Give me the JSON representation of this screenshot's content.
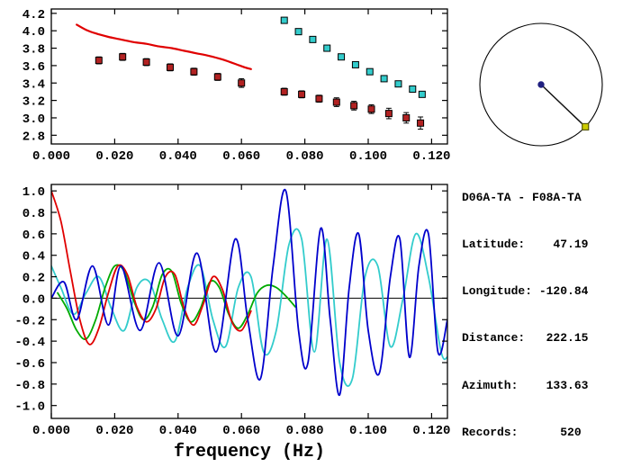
{
  "info": {
    "pair": "D06A-TA - F08A-TA",
    "lines": [
      "Latitude:    47.19",
      "Longitude: -120.84",
      "Distance:   222.15",
      "Azimuth:    133.63",
      "Records:      520"
    ]
  },
  "colors": {
    "background": "#ffffff",
    "axis": "#000000",
    "reference_red": "#e00000",
    "measured_maroon": "#b22222",
    "alternate_cyan": "#33cccc",
    "waveform_green": "#00aa00",
    "waveform_blue": "#0000cc",
    "map_center_navy": "#202080",
    "map_station_yellow": "#cccc00"
  },
  "chart_data": [
    {
      "id": "dispersion",
      "type": "scatter",
      "title": "",
      "xlabel": "",
      "ylabel": "",
      "xlim": [
        0,
        0.125
      ],
      "ylim": [
        2.7,
        4.25
      ],
      "grid": false,
      "xticks": [
        0.0,
        0.02,
        0.04,
        0.06,
        0.08,
        0.1,
        0.12
      ],
      "xtick_labels": [
        "0.000",
        "0.020",
        "0.040",
        "0.060",
        "0.080",
        "0.100",
        "0.120"
      ],
      "yticks": [
        2.8,
        3.0,
        3.2,
        3.4,
        3.6,
        3.8,
        4.0,
        4.2
      ],
      "ytick_labels": [
        "2.8",
        "3.0",
        "3.2",
        "3.4",
        "3.6",
        "3.8",
        "4.0",
        "4.2"
      ],
      "series": [
        {
          "name": "reference-dispersion-curve",
          "type": "line",
          "color": "#e00000",
          "width": 2.2,
          "x": [
            0.008,
            0.011,
            0.014,
            0.018,
            0.022,
            0.026,
            0.03,
            0.034,
            0.038,
            0.042,
            0.046,
            0.05,
            0.054,
            0.058,
            0.061,
            0.063
          ],
          "y": [
            4.07,
            4.01,
            3.97,
            3.93,
            3.9,
            3.87,
            3.85,
            3.82,
            3.8,
            3.77,
            3.74,
            3.71,
            3.67,
            3.62,
            3.58,
            3.56
          ]
        },
        {
          "name": "measured-phase-velocity",
          "type": "scatter",
          "marker": "square",
          "color": "#b22222",
          "edge": "#000000",
          "x": [
            0.015,
            0.0225,
            0.03,
            0.0375,
            0.045,
            0.0525,
            0.06,
            0.0735,
            0.079,
            0.0845,
            0.09,
            0.0955,
            0.101,
            0.1065,
            0.112,
            0.1165
          ],
          "y": [
            3.66,
            3.7,
            3.64,
            3.58,
            3.53,
            3.47,
            3.4,
            3.3,
            3.27,
            3.22,
            3.18,
            3.14,
            3.1,
            3.05,
            3.0,
            2.94
          ],
          "yerr": [
            0.04,
            0.04,
            0.04,
            0.04,
            0.04,
            0.04,
            0.05,
            0.04,
            0.04,
            0.04,
            0.05,
            0.05,
            0.05,
            0.06,
            0.06,
            0.07
          ]
        },
        {
          "name": "alternate-phase-velocity",
          "type": "scatter",
          "marker": "square",
          "color": "#33cccc",
          "edge": "#000000",
          "x": [
            0.0735,
            0.078,
            0.0825,
            0.087,
            0.0915,
            0.096,
            0.1005,
            0.105,
            0.1095,
            0.114,
            0.117
          ],
          "y": [
            4.12,
            3.99,
            3.9,
            3.8,
            3.7,
            3.61,
            3.53,
            3.45,
            3.39,
            3.33,
            3.27
          ]
        }
      ]
    },
    {
      "id": "waveforms",
      "type": "line",
      "title": "",
      "xlabel": "frequency (Hz)",
      "ylabel": "",
      "xlim": [
        0,
        0.125
      ],
      "ylim": [
        -1.12,
        1.06
      ],
      "grid": false,
      "zero_line": true,
      "xticks": [
        0.0,
        0.02,
        0.04,
        0.06,
        0.08,
        0.1,
        0.12
      ],
      "xtick_labels": [
        "0.000",
        "0.020",
        "0.040",
        "0.060",
        "0.080",
        "0.100",
        "0.120"
      ],
      "yticks": [
        -1.0,
        -0.8,
        -0.6,
        -0.4,
        -0.2,
        0.0,
        0.2,
        0.4,
        0.6,
        0.8,
        1.0
      ],
      "ytick_labels": [
        "-1.0",
        "-0.8",
        "-0.6",
        "-0.4",
        "-0.2",
        "0.0",
        "0.2",
        "0.4",
        "0.6",
        "0.8",
        "1.0"
      ],
      "series": [
        {
          "name": "cyan-waveform",
          "type": "spline",
          "color": "#33cccc",
          "width": 1.8,
          "x": [
            0.0,
            0.003,
            0.007,
            0.011,
            0.015,
            0.019,
            0.023,
            0.027,
            0.031,
            0.035,
            0.039,
            0.043,
            0.047,
            0.051,
            0.055,
            0.059,
            0.063,
            0.067,
            0.071,
            0.075,
            0.079,
            0.083,
            0.087,
            0.091,
            0.095,
            0.099,
            0.103,
            0.107,
            0.111,
            0.115,
            0.119,
            0.123,
            0.125
          ],
          "y": [
            0.3,
            0.1,
            -0.15,
            0.05,
            0.2,
            -0.1,
            -0.3,
            0.1,
            0.15,
            -0.2,
            -0.4,
            0.1,
            0.3,
            -0.2,
            -0.45,
            0.1,
            0.2,
            -0.5,
            -0.3,
            0.5,
            0.55,
            -0.5,
            0.55,
            -0.6,
            -0.75,
            0.2,
            0.3,
            -0.45,
            0.0,
            0.6,
            0.2,
            -0.5,
            -0.55
          ]
        },
        {
          "name": "green-waveform",
          "type": "spline",
          "color": "#00aa00",
          "width": 1.8,
          "x": [
            0.002,
            0.005,
            0.008,
            0.011,
            0.014,
            0.017,
            0.02,
            0.023,
            0.026,
            0.029,
            0.032,
            0.035,
            0.038,
            0.041,
            0.044,
            0.047,
            0.05,
            0.053,
            0.056,
            0.059,
            0.062,
            0.065,
            0.068,
            0.071,
            0.074,
            0.077
          ],
          "y": [
            0.05,
            -0.1,
            -0.3,
            -0.38,
            -0.2,
            0.1,
            0.3,
            0.25,
            -0.02,
            -0.2,
            -0.08,
            0.22,
            0.25,
            -0.05,
            -0.22,
            -0.1,
            0.15,
            0.1,
            -0.15,
            -0.28,
            -0.15,
            0.05,
            0.12,
            0.1,
            0.02,
            -0.08
          ]
        },
        {
          "name": "red-waveform",
          "type": "spline",
          "color": "#e00000",
          "width": 1.8,
          "x": [
            0.0,
            0.003,
            0.006,
            0.009,
            0.012,
            0.015,
            0.018,
            0.021,
            0.024,
            0.027,
            0.03,
            0.033,
            0.036,
            0.039,
            0.042,
            0.045,
            0.048,
            0.051,
            0.054,
            0.057,
            0.06,
            0.063
          ],
          "y": [
            1.0,
            0.72,
            0.25,
            -0.2,
            -0.43,
            -0.28,
            0.05,
            0.3,
            0.22,
            -0.08,
            -0.22,
            -0.1,
            0.2,
            0.22,
            -0.1,
            -0.25,
            -0.05,
            0.2,
            0.08,
            -0.22,
            -0.3,
            -0.12
          ]
        },
        {
          "name": "blue-waveform",
          "type": "spline",
          "color": "#0000cc",
          "width": 1.8,
          "x": [
            0.0,
            0.004,
            0.008,
            0.013,
            0.018,
            0.022,
            0.028,
            0.034,
            0.04,
            0.046,
            0.052,
            0.058,
            0.062,
            0.066,
            0.07,
            0.074,
            0.078,
            0.081,
            0.085,
            0.088,
            0.091,
            0.094,
            0.097,
            0.1,
            0.1035,
            0.107,
            0.11,
            0.113,
            0.116,
            0.119,
            0.122,
            0.125
          ],
          "y": [
            0.0,
            0.15,
            -0.2,
            0.3,
            -0.25,
            0.3,
            -0.3,
            0.33,
            -0.35,
            0.42,
            -0.5,
            0.55,
            -0.2,
            -0.75,
            0.3,
            1.0,
            -0.3,
            -0.6,
            0.65,
            -0.2,
            -0.9,
            0.1,
            0.6,
            -0.3,
            -0.7,
            0.2,
            0.55,
            -0.55,
            0.3,
            0.6,
            -0.5,
            -0.2
          ]
        }
      ]
    },
    {
      "id": "azimuth-map",
      "type": "map",
      "azimuth_deg": 133.63,
      "center_color": "#202080",
      "edge_marker_color": "#cccc00",
      "edge_marker_stroke": "#555500",
      "line_color": "#111111",
      "circle_color": "#000000"
    }
  ]
}
